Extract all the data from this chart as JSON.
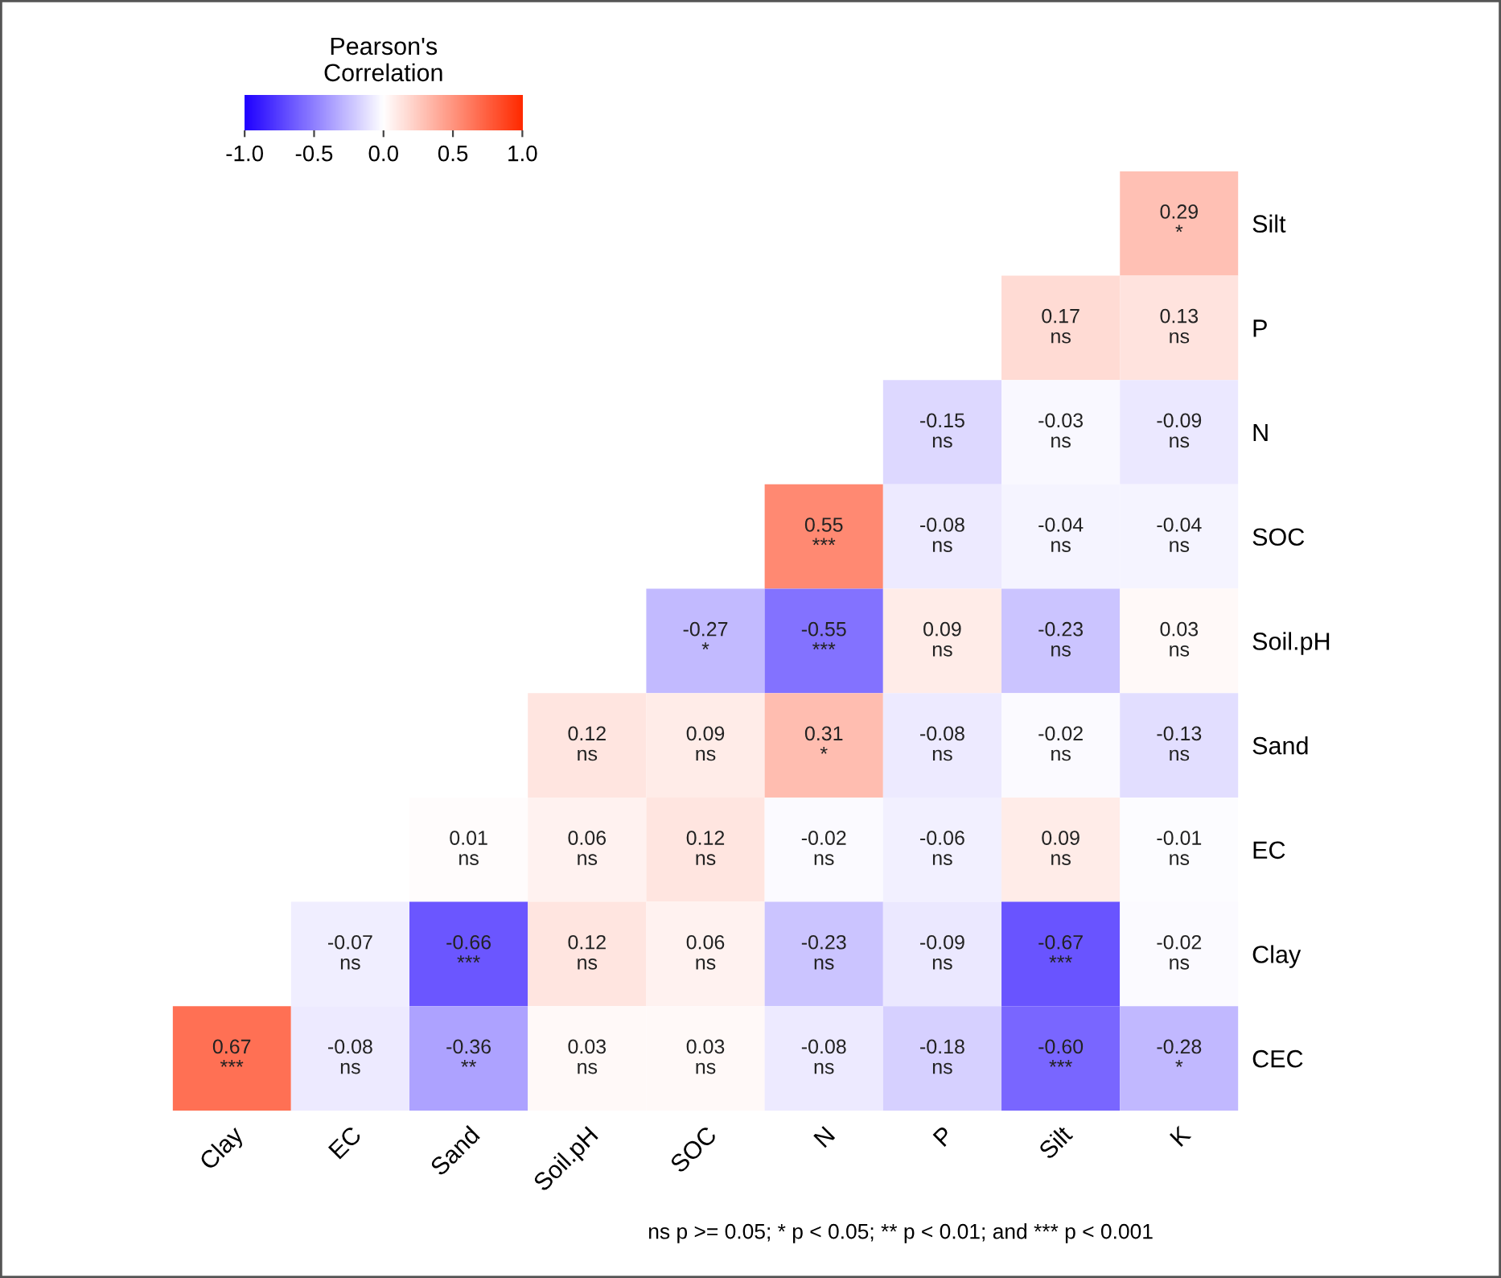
{
  "chart_data": {
    "type": "heatmap",
    "categories": [
      "Clay",
      "EC",
      "Sand",
      "Soil.pH",
      "SOC",
      "N",
      "P",
      "Silt",
      "K"
    ],
    "y_categories": [
      "Silt",
      "P",
      "N",
      "SOC",
      "Soil.pH",
      "Sand",
      "EC",
      "Clay",
      "CEC"
    ],
    "cells": [
      [
        null,
        null,
        null,
        null,
        null,
        null,
        null,
        null,
        0.29
      ],
      [
        null,
        null,
        null,
        null,
        null,
        null,
        null,
        0.17,
        0.13
      ],
      [
        null,
        null,
        null,
        null,
        null,
        null,
        -0.15,
        -0.03,
        -0.09
      ],
      [
        null,
        null,
        null,
        null,
        null,
        0.55,
        -0.08,
        -0.04,
        -0.04
      ],
      [
        null,
        null,
        null,
        null,
        -0.27,
        -0.55,
        0.09,
        -0.23,
        0.03
      ],
      [
        null,
        null,
        null,
        0.12,
        0.09,
        0.31,
        -0.08,
        -0.02,
        -0.13
      ],
      [
        null,
        null,
        0.01,
        0.06,
        0.12,
        -0.02,
        -0.06,
        0.09,
        -0.01
      ],
      [
        null,
        -0.07,
        -0.66,
        0.12,
        0.06,
        -0.23,
        -0.09,
        -0.67,
        -0.02
      ],
      [
        0.67,
        -0.08,
        -0.36,
        0.03,
        0.03,
        -0.08,
        -0.18,
        -0.6,
        -0.28
      ]
    ],
    "cell_labels": [
      [
        null,
        null,
        null,
        null,
        null,
        null,
        null,
        null,
        "0.29\n*"
      ],
      [
        null,
        null,
        null,
        null,
        null,
        null,
        null,
        "0.17\nns",
        "0.13\nns"
      ],
      [
        null,
        null,
        null,
        null,
        null,
        null,
        "-0.15\nns",
        "-0.03\nns",
        "-0.09\nns"
      ],
      [
        null,
        null,
        null,
        null,
        null,
        "0.55\n***",
        "-0.08\nns",
        "-0.04\nns",
        "-0.04\nns"
      ],
      [
        null,
        null,
        null,
        null,
        "-0.27\n*",
        "-0.55\n***",
        "0.09\nns",
        "-0.23\nns",
        "0.03\nns"
      ],
      [
        null,
        null,
        null,
        "0.12\nns",
        "0.09\nns",
        "0.31\n*",
        "-0.08\nns",
        "-0.02\nns",
        "-0.13\nns"
      ],
      [
        null,
        null,
        "0.01\nns",
        "0.06\nns",
        "0.12\nns",
        "-0.02\nns",
        "-0.06\nns",
        "0.09\nns",
        "-0.01\nns"
      ],
      [
        null,
        "-0.07\nns",
        "-0.66\n***",
        "0.12\nns",
        "0.06\nns",
        "-0.23\nns",
        "-0.09\nns",
        "-0.67\n***",
        "-0.02\nns"
      ],
      [
        "0.67\n***",
        "-0.08\nns",
        "-0.36\n**",
        "0.03\nns",
        "0.03\nns",
        "-0.08\nns",
        "-0.18\nns",
        "-0.60\n***",
        "-0.28\n*"
      ]
    ],
    "clabel": "Pearson's\nCorrelation",
    "clim": [
      -1.0,
      1.0
    ],
    "cticks": [
      {
        "value": -1.0,
        "label": "-1.0"
      },
      {
        "value": -0.5,
        "label": "-0.5"
      },
      {
        "value": 0.0,
        "label": "0.0"
      },
      {
        "value": 0.5,
        "label": "0.5"
      },
      {
        "value": 1.0,
        "label": "1.0"
      }
    ],
    "annotations": [
      "ns p >= 0.05; * p < 0.05; ** p < 0.01; and *** p < 0.001"
    ]
  }
}
